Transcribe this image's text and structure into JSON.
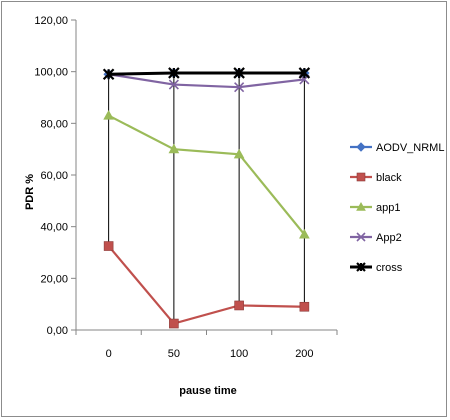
{
  "chart_data": {
    "type": "line",
    "categories": [
      "0",
      "50",
      "100",
      "200"
    ],
    "title": "",
    "xlabel": "pause time",
    "ylabel": "PDR %",
    "ylim": [
      0,
      120
    ],
    "yticks": [
      "0,00",
      "20,00",
      "40,00",
      "60,00",
      "80,00",
      "100,00",
      "120,00"
    ],
    "grid": false,
    "legend_position": "right",
    "series": [
      {
        "name": "AODV_NRML",
        "values": [
          99,
          99.5,
          99.5,
          99.5
        ],
        "color": "#4472c4",
        "marker": "diamond"
      },
      {
        "name": "black",
        "values": [
          32.5,
          2.5,
          9.5,
          9
        ],
        "color": "#c0504d",
        "marker": "square"
      },
      {
        "name": "app1",
        "values": [
          83,
          70,
          68,
          37
        ],
        "color": "#9bbb59",
        "marker": "triangle"
      },
      {
        "name": "App2",
        "values": [
          99,
          95,
          94,
          97
        ],
        "color": "#8064a2",
        "marker": "x"
      },
      {
        "name": "cross",
        "values": [
          99,
          99.5,
          99.5,
          99.5
        ],
        "color": "#000000",
        "marker": "star"
      }
    ]
  }
}
